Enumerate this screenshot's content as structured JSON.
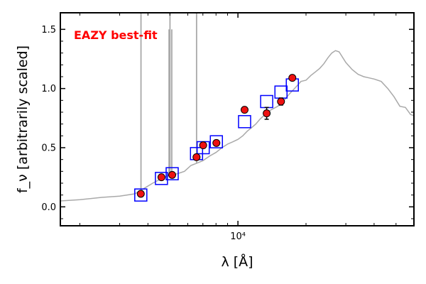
{
  "chart_data": {
    "type": "scatter",
    "title": "",
    "annotation": "EAZY best-fit",
    "annotation_color": "#ff0000",
    "xlabel": "λ [Å]",
    "ylabel": "f_ν [arbitrarily scaled]",
    "xscale": "log",
    "xlim": [
      1640,
      60000
    ],
    "ylim": [
      -0.16,
      1.64
    ],
    "x_ticks": [
      {
        "value": 10000,
        "label": "10⁴"
      }
    ],
    "y_ticks": [
      {
        "value": 0.0,
        "label": "0.0"
      },
      {
        "value": 0.5,
        "label": "0.5"
      },
      {
        "value": 1.0,
        "label": "1.0"
      },
      {
        "value": 1.5,
        "label": "1.5"
      }
    ],
    "grid": false,
    "colors": {
      "template": "#a9a9a9",
      "model_box": "#0000ff",
      "observed_fill": "#ee1111",
      "observed_edge": "#000000"
    },
    "template_spectrum": {
      "name": "",
      "x": [
        1640,
        2000,
        2500,
        3000,
        3500,
        3800,
        4200,
        4600,
        5000,
        5400,
        5800,
        6200,
        6600,
        7000,
        7500,
        8000,
        8500,
        9000,
        9500,
        10000,
        10500,
        11000,
        11500,
        12000,
        12500,
        13000,
        14000,
        15000,
        16000,
        17000,
        18000,
        19000,
        20000,
        21000,
        22000,
        23000,
        24000,
        25000,
        26000,
        27000,
        28000,
        30000,
        32000,
        34000,
        36000,
        38000,
        40000,
        43000,
        46000,
        49000,
        52000,
        55000,
        58000,
        60000
      ],
      "y": [
        0.05,
        0.06,
        0.08,
        0.09,
        0.11,
        0.15,
        0.2,
        0.24,
        0.27,
        0.28,
        0.3,
        0.35,
        0.37,
        0.39,
        0.43,
        0.46,
        0.5,
        0.53,
        0.55,
        0.57,
        0.6,
        0.64,
        0.67,
        0.7,
        0.74,
        0.77,
        0.82,
        0.85,
        0.9,
        0.96,
        1.01,
        1.06,
        1.07,
        1.11,
        1.14,
        1.17,
        1.21,
        1.26,
        1.3,
        1.32,
        1.31,
        1.22,
        1.16,
        1.12,
        1.1,
        1.09,
        1.08,
        1.06,
        1.0,
        0.93,
        0.85,
        0.84,
        0.78,
        0.77
      ]
    },
    "emission_lines": [
      {
        "x": 3727,
        "peak": 1.64
      },
      {
        "x": 4959,
        "peak": 1.5
      },
      {
        "x": 5007,
        "peak": 1.64
      },
      {
        "x": 5100,
        "peak": 1.5
      },
      {
        "x": 6563,
        "peak": 1.64
      }
    ],
    "model_fluxes": {
      "name": "",
      "x": [
        3720,
        4590,
        5120,
        6560,
        7020,
        8030,
        10700,
        13400,
        15500,
        17400
      ],
      "y": [
        0.1,
        0.24,
        0.28,
        0.45,
        0.5,
        0.55,
        0.72,
        0.89,
        0.97,
        1.03
      ]
    },
    "observed_fluxes": {
      "name": "",
      "x": [
        3720,
        4590,
        5120,
        6560,
        7020,
        8030,
        10700,
        13400,
        15500,
        17400
      ],
      "y": [
        0.11,
        0.25,
        0.27,
        0.42,
        0.52,
        0.54,
        0.82,
        0.79,
        0.89,
        1.09
      ],
      "yerr": [
        0.01,
        0.01,
        0.01,
        0.01,
        0.01,
        0.01,
        0.02,
        0.05,
        0.03,
        0.015
      ]
    }
  }
}
